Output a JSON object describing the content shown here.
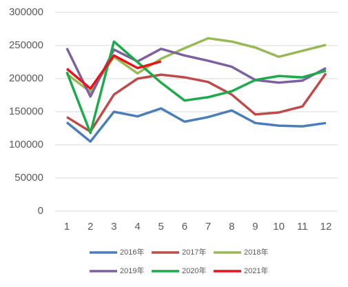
{
  "chart_data": {
    "type": "line",
    "categories": [
      "1",
      "2",
      "3",
      "4",
      "5",
      "6",
      "7",
      "8",
      "9",
      "10",
      "11",
      "12"
    ],
    "series": [
      {
        "name": "2016年",
        "color": "#4a7ebb",
        "values": [
          134000,
          105000,
          150000,
          143000,
          155000,
          135000,
          142000,
          152000,
          133000,
          129000,
          128000,
          133000
        ]
      },
      {
        "name": "2017年",
        "color": "#be4b48",
        "values": [
          142000,
          120000,
          176000,
          200000,
          206000,
          202000,
          195000,
          176000,
          146000,
          149000,
          158000,
          208000
        ]
      },
      {
        "name": "2018年",
        "color": "#98b954",
        "values": [
          207000,
          180000,
          233000,
          208000,
          230000,
          246000,
          261000,
          256000,
          247000,
          233000,
          242000,
          251000
        ]
      },
      {
        "name": "2019年",
        "color": "#7d60a0",
        "values": [
          246000,
          173000,
          244000,
          226000,
          245000,
          235000,
          227000,
          218000,
          198000,
          194000,
          197000,
          216000
        ]
      },
      {
        "name": "2020年",
        "color": "#1cab4b",
        "values": [
          210000,
          118000,
          256000,
          225000,
          194000,
          167000,
          172000,
          181000,
          198000,
          204000,
          202000,
          212000
        ]
      },
      {
        "name": "2021年",
        "color": "#e8141b",
        "values": [
          215000,
          185000,
          235000,
          216000,
          226000,
          null,
          null,
          null,
          null,
          null,
          null,
          null
        ]
      }
    ],
    "ylim": [
      0,
      300000
    ],
    "yticks": [
      0,
      50000,
      100000,
      150000,
      200000,
      250000,
      300000
    ],
    "grid": true
  }
}
